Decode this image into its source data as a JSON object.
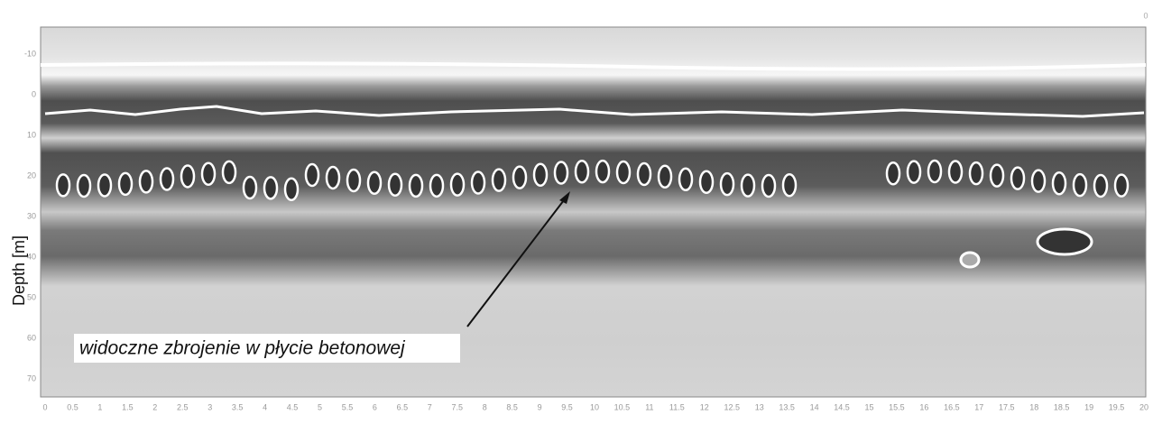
{
  "y_axis_label": "Depth [m]",
  "corner_label": "0",
  "annotation": "widoczne zbrojenie w płycie betonowej",
  "y_ticks": [
    "-10",
    "0",
    "10",
    "20",
    "30",
    "40",
    "50",
    "60",
    "70"
  ],
  "x_ticks": [
    "0",
    "0.5",
    "1",
    "1.5",
    "2",
    "2.5",
    "3",
    "3.5",
    "4",
    "4.5",
    "5",
    "5.5",
    "6",
    "6.5",
    "7",
    "7.5",
    "8",
    "8.5",
    "9",
    "9.5",
    "10",
    "10.5",
    "11",
    "11.5",
    "12",
    "12.5",
    "13",
    "13.5",
    "14",
    "14.5",
    "15",
    "15.5",
    "16",
    "16.5",
    "17",
    "17.5",
    "18",
    "18.5",
    "19",
    "19.5",
    "20"
  ]
}
